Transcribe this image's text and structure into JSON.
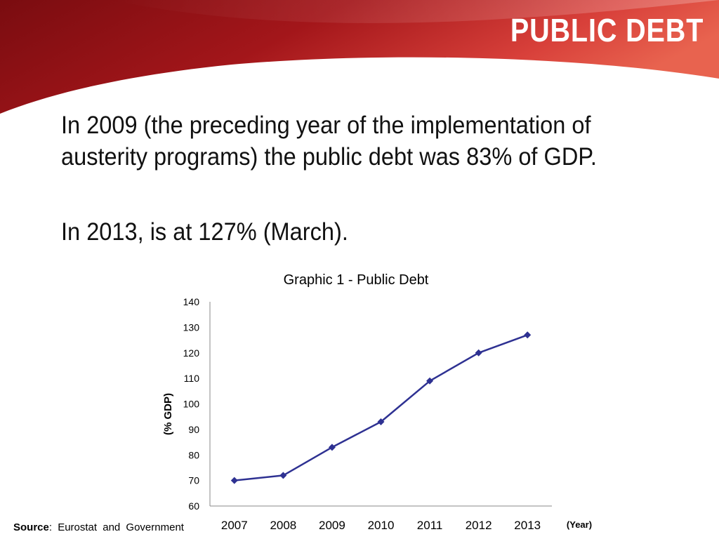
{
  "slide": {
    "title": "PUBLIC  DEBT",
    "paragraphs": [
      "In 2009 (the preceding year of the implementation of austerity programs) the public debt was 83% of GDP.",
      "In 2013, is at 127% (March)."
    ],
    "source_label": "Source",
    "source_text": ": Eurostat  and  Government"
  },
  "colors": {
    "header_dark": "#8c0f12",
    "header_light": "#e8554a",
    "series_line": "#2e3192",
    "text": "#111111"
  },
  "chart_data": {
    "type": "line",
    "title": "Graphic 1 - Public Debt",
    "xlabel": "(Year)",
    "ylabel": "(% GDP)",
    "categories": [
      "2007",
      "2008",
      "2009",
      "2010",
      "2011",
      "2012",
      "2013"
    ],
    "series": [
      {
        "values": [
          70,
          72,
          83,
          93,
          109,
          120,
          127
        ]
      }
    ],
    "ylim": [
      60,
      140
    ],
    "yticks": [
      60,
      70,
      80,
      90,
      100,
      110,
      120,
      130,
      140
    ],
    "grid": false,
    "legend": "none"
  }
}
